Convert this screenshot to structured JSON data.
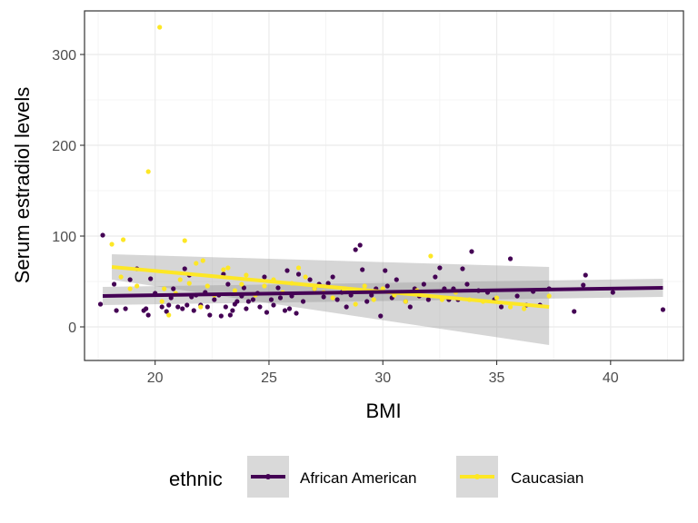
{
  "chart_data": {
    "type": "scatter",
    "xlabel": "BMI",
    "ylabel": "Serum estradiol levels",
    "xlim": [
      16.9,
      43.2
    ],
    "ylim": [
      -37,
      348
    ],
    "x_ticks": [
      20,
      25,
      30,
      35,
      40
    ],
    "x_tick_labels": [
      "20",
      "25",
      "30",
      "35",
      "40"
    ],
    "y_ticks": [
      0,
      100,
      200,
      300
    ],
    "y_tick_labels": [
      "0",
      "100",
      "200",
      "300"
    ],
    "grid": true,
    "legend": {
      "title": "ethnic",
      "position": "bottom",
      "entries": [
        "African American",
        "Caucasian"
      ]
    },
    "colors": {
      "African American": "#440154",
      "Caucasian": "#fde725",
      "ribbon": "#999999"
    },
    "series": [
      {
        "name": "African American",
        "points": [
          [
            17.7,
            101
          ],
          [
            17.6,
            25
          ],
          [
            18.2,
            47
          ],
          [
            18.3,
            18
          ],
          [
            18.7,
            20
          ],
          [
            18.9,
            52
          ],
          [
            19.2,
            64
          ],
          [
            19.5,
            18
          ],
          [
            19.6,
            20
          ],
          [
            19.7,
            13
          ],
          [
            19.8,
            53
          ],
          [
            20.0,
            37
          ],
          [
            20.3,
            22
          ],
          [
            20.5,
            17
          ],
          [
            20.6,
            24
          ],
          [
            20.7,
            32
          ],
          [
            20.8,
            42
          ],
          [
            21.0,
            22
          ],
          [
            21.2,
            20
          ],
          [
            21.3,
            64
          ],
          [
            21.4,
            24
          ],
          [
            21.5,
            57
          ],
          [
            21.6,
            33
          ],
          [
            21.7,
            18
          ],
          [
            21.8,
            35
          ],
          [
            22.0,
            24
          ],
          [
            22.2,
            38
          ],
          [
            22.3,
            22
          ],
          [
            22.4,
            13
          ],
          [
            22.6,
            30
          ],
          [
            22.8,
            35
          ],
          [
            22.9,
            12
          ],
          [
            23.0,
            58
          ],
          [
            23.1,
            22
          ],
          [
            23.2,
            47
          ],
          [
            23.3,
            13
          ],
          [
            23.4,
            18
          ],
          [
            23.5,
            25
          ],
          [
            23.6,
            28
          ],
          [
            23.8,
            34
          ],
          [
            23.9,
            43
          ],
          [
            24.0,
            20
          ],
          [
            24.1,
            28
          ],
          [
            24.3,
            30
          ],
          [
            24.5,
            37
          ],
          [
            24.6,
            22
          ],
          [
            24.8,
            55
          ],
          [
            24.9,
            16
          ],
          [
            25.1,
            30
          ],
          [
            25.2,
            24
          ],
          [
            25.4,
            43
          ],
          [
            25.5,
            32
          ],
          [
            25.7,
            18
          ],
          [
            25.8,
            62
          ],
          [
            25.9,
            20
          ],
          [
            26.0,
            34
          ],
          [
            26.2,
            15
          ],
          [
            26.3,
            58
          ],
          [
            26.5,
            28
          ],
          [
            26.8,
            52
          ],
          [
            27.0,
            42
          ],
          [
            27.2,
            47
          ],
          [
            27.4,
            33
          ],
          [
            27.6,
            48
          ],
          [
            27.8,
            55
          ],
          [
            28.0,
            30
          ],
          [
            28.2,
            38
          ],
          [
            28.4,
            22
          ],
          [
            28.6,
            35
          ],
          [
            28.8,
            85
          ],
          [
            29.0,
            90
          ],
          [
            29.1,
            63
          ],
          [
            29.3,
            28
          ],
          [
            29.5,
            35
          ],
          [
            29.7,
            42
          ],
          [
            29.9,
            12
          ],
          [
            30.1,
            62
          ],
          [
            30.2,
            45
          ],
          [
            30.4,
            32
          ],
          [
            30.6,
            52
          ],
          [
            30.8,
            38
          ],
          [
            31.0,
            28
          ],
          [
            31.2,
            22
          ],
          [
            31.4,
            42
          ],
          [
            31.6,
            34
          ],
          [
            31.8,
            47
          ],
          [
            32.0,
            30
          ],
          [
            32.3,
            55
          ],
          [
            32.5,
            65
          ],
          [
            32.7,
            42
          ],
          [
            32.9,
            30
          ],
          [
            33.1,
            42
          ],
          [
            33.3,
            30
          ],
          [
            33.5,
            64
          ],
          [
            33.7,
            47
          ],
          [
            33.9,
            83
          ],
          [
            34.2,
            40
          ],
          [
            34.6,
            38
          ],
          [
            34.9,
            30
          ],
          [
            35.2,
            22
          ],
          [
            35.6,
            75
          ],
          [
            35.9,
            34
          ],
          [
            36.3,
            24
          ],
          [
            36.6,
            39
          ],
          [
            36.9,
            24
          ],
          [
            37.3,
            42
          ],
          [
            38.4,
            17
          ],
          [
            38.8,
            46
          ],
          [
            38.9,
            57
          ],
          [
            40.1,
            38
          ],
          [
            42.3,
            19
          ]
        ],
        "trend": {
          "x": [
            17.7,
            42.3
          ],
          "y": [
            34,
            43
          ],
          "ci_halfwidth": 10
        }
      },
      {
        "name": "Caucasian",
        "points": [
          [
            18.1,
            91
          ],
          [
            18.5,
            55
          ],
          [
            18.6,
            96
          ],
          [
            18.9,
            42
          ],
          [
            19.2,
            45
          ],
          [
            19.7,
            171
          ],
          [
            20.2,
            330
          ],
          [
            20.3,
            28
          ],
          [
            20.4,
            42
          ],
          [
            20.6,
            13
          ],
          [
            20.9,
            37
          ],
          [
            21.1,
            52
          ],
          [
            21.3,
            95
          ],
          [
            21.5,
            48
          ],
          [
            21.8,
            70
          ],
          [
            22.0,
            22
          ],
          [
            22.1,
            73
          ],
          [
            22.3,
            45
          ],
          [
            22.6,
            35
          ],
          [
            23.0,
            63
          ],
          [
            23.2,
            65
          ],
          [
            23.5,
            40
          ],
          [
            23.8,
            47
          ],
          [
            24.0,
            57
          ],
          [
            24.4,
            35
          ],
          [
            24.8,
            45
          ],
          [
            25.2,
            52
          ],
          [
            25.6,
            38
          ],
          [
            26.0,
            48
          ],
          [
            26.3,
            65
          ],
          [
            26.6,
            55
          ],
          [
            27.0,
            42
          ],
          [
            27.4,
            38
          ],
          [
            27.8,
            32
          ],
          [
            28.3,
            40
          ],
          [
            28.8,
            25
          ],
          [
            29.2,
            45
          ],
          [
            29.6,
            30
          ],
          [
            30.0,
            42
          ],
          [
            30.5,
            35
          ],
          [
            31.0,
            28
          ],
          [
            31.5,
            40
          ],
          [
            32.1,
            78
          ],
          [
            32.6,
            30
          ],
          [
            33.2,
            38
          ],
          [
            33.8,
            30
          ],
          [
            34.4,
            28
          ],
          [
            35.0,
            32
          ],
          [
            35.6,
            22
          ],
          [
            36.2,
            20
          ],
          [
            37.3,
            34
          ]
        ],
        "trend": {
          "x": [
            18.1,
            37.3
          ],
          "y": [
            66,
            22
          ],
          "ci_lower_end": [
            52,
            -20
          ],
          "ci_upper_end": [
            80,
            66
          ]
        }
      }
    ]
  }
}
